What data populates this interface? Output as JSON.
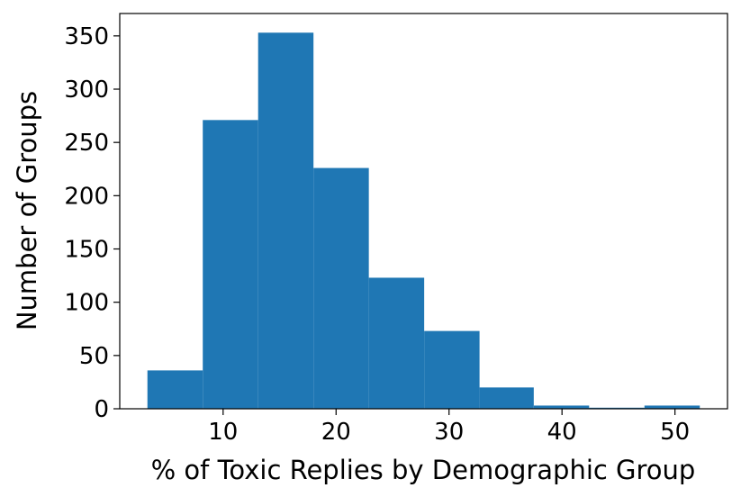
{
  "chart_data": {
    "type": "histogram",
    "xlabel": "% of Toxic Replies by Demographic Group",
    "ylabel": "Number of Groups",
    "bins": [
      3.3,
      8.2,
      13.1,
      18.0,
      22.9,
      27.8,
      32.7,
      37.5,
      42.4,
      47.3,
      52.2
    ],
    "values": [
      36,
      271,
      353,
      226,
      123,
      73,
      20,
      3,
      1,
      3
    ],
    "color": "#1f77b4",
    "xlim": [
      0.85,
      54.65
    ],
    "xticks": [
      10,
      20,
      30,
      40,
      50
    ],
    "ylim": [
      0,
      371
    ],
    "yticks": [
      0,
      50,
      100,
      150,
      200,
      250,
      300,
      350
    ]
  }
}
